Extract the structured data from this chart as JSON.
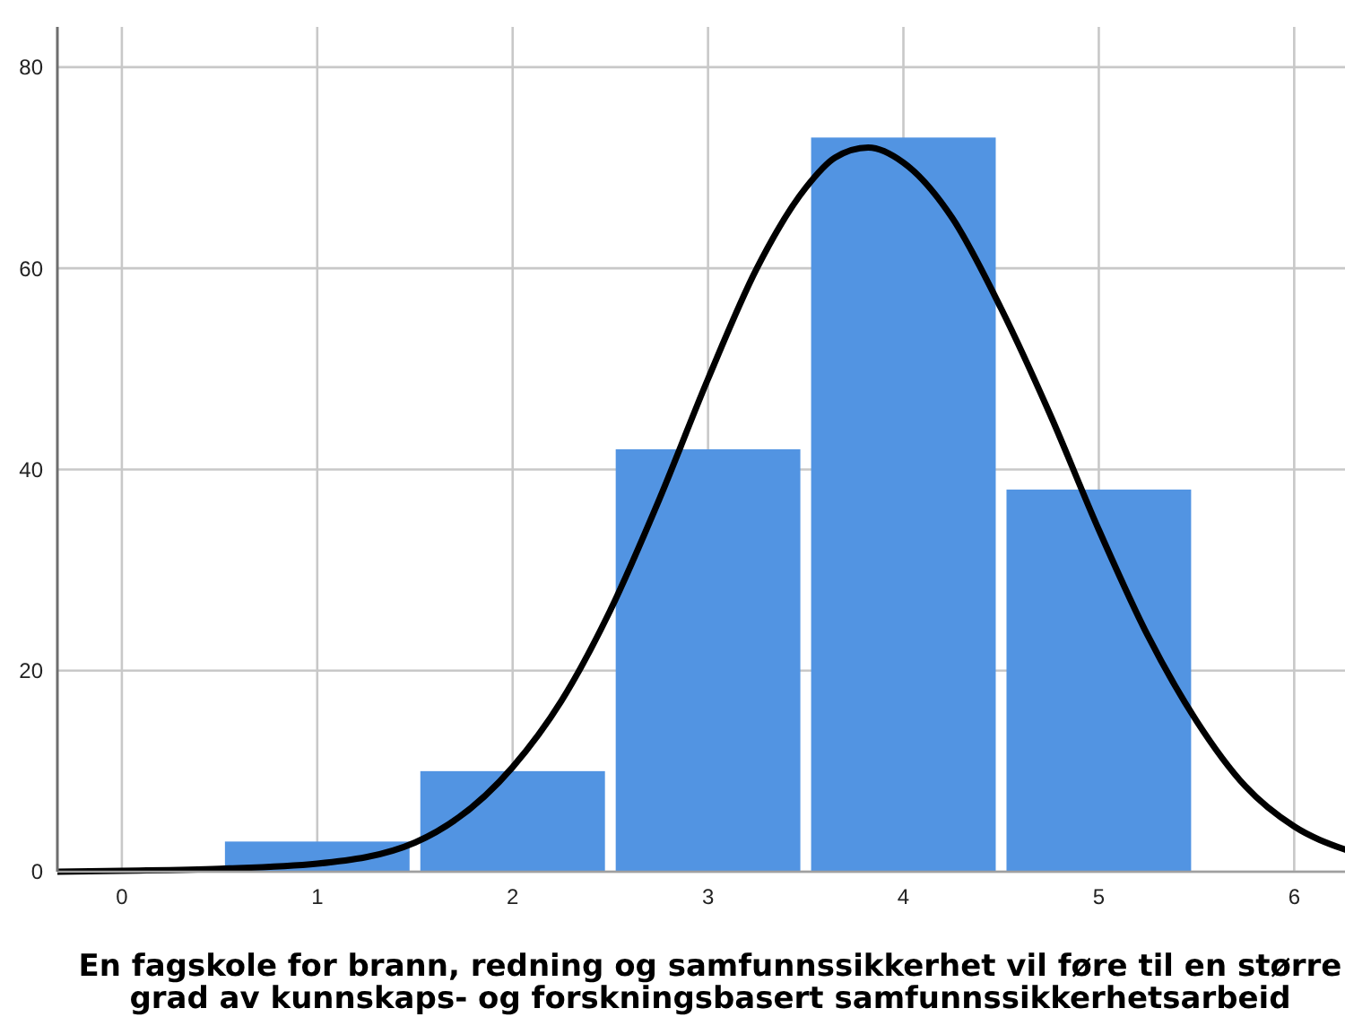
{
  "chart_data": {
    "type": "histogram",
    "xlabel": "En fagskole for brann, redning og samfunnssikkerhet vil føre til en større\ngrad av kunnskaps- og forskningsbasert samfunnssikkerhetsarbeid",
    "bins": [
      0.5,
      1.5,
      2.5,
      3.5,
      4.5,
      5.5
    ],
    "series": [
      {
        "color": "#5294e2",
        "values": [
          3,
          10,
          42,
          73,
          38
        ]
      },
      {
        "type": "line",
        "color": "#000000",
        "x": [
          -0.33,
          0,
          0.5,
          1,
          1.5,
          2,
          2.25,
          2.5,
          2.75,
          3,
          3.25,
          3.5,
          3.65,
          3.82,
          4,
          4.25,
          4.5,
          4.75,
          5,
          5.25,
          5.5,
          5.75,
          6,
          6.26
        ],
        "values": [
          0,
          0.1,
          0.3,
          0.8,
          2.9,
          10.4,
          17,
          26,
          37,
          49,
          60,
          68,
          71,
          72,
          70.5,
          65,
          56,
          45.5,
          34,
          23.5,
          15,
          8.5,
          4.5,
          2.2
        ]
      }
    ],
    "xlim": [
      -0.33,
      6.26
    ],
    "xticks": [
      0,
      1,
      2,
      3,
      4,
      5,
      6
    ],
    "ylim": [
      0,
      84
    ],
    "yticks": [
      0,
      20,
      40,
      60,
      80
    ],
    "grid": true
  }
}
